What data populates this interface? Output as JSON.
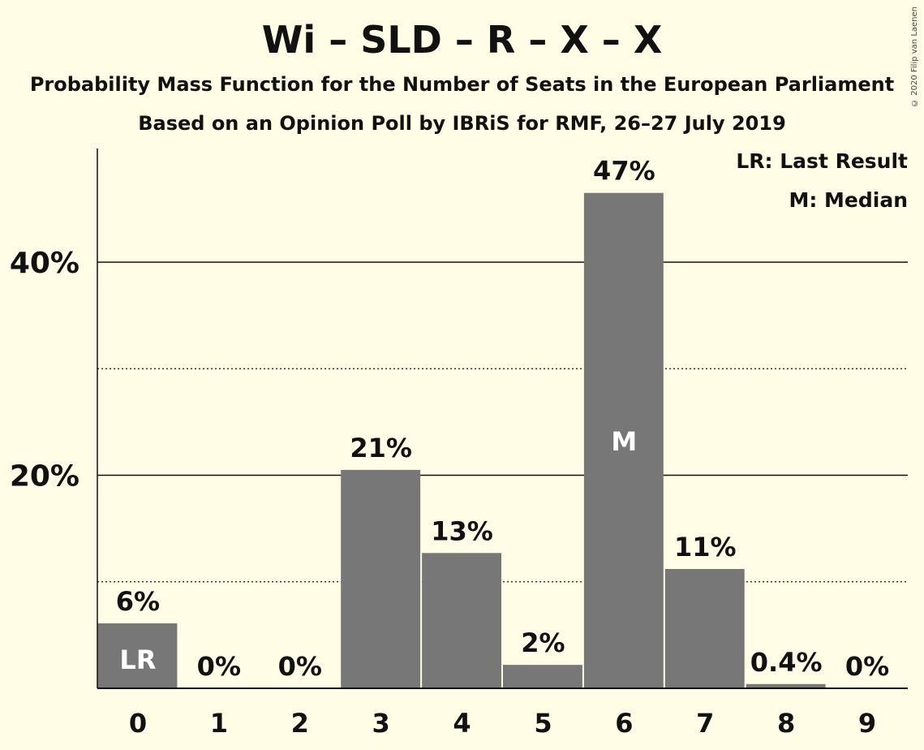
{
  "title": "Wi – SLD – R – X – X",
  "subtitle1": "Probability Mass Function for the Number of Seats in the European Parliament",
  "subtitle2": "Based on an Opinion Poll by IBRiS for RMF, 26–27 July 2019",
  "copyright": "© 2020 Filip van Laenen",
  "legend": {
    "lr": "LR: Last Result",
    "m": "M: Median"
  },
  "colors": {
    "background": "#fffde5",
    "bar": "#777777"
  },
  "chart_data": {
    "type": "bar",
    "categories": [
      "0",
      "1",
      "2",
      "3",
      "4",
      "5",
      "6",
      "7",
      "8",
      "9"
    ],
    "values": [
      6.1,
      0,
      0,
      20.5,
      12.7,
      2.2,
      46.5,
      11.2,
      0.4,
      0
    ],
    "data_labels": [
      "6%",
      "0%",
      "0%",
      "21%",
      "13%",
      "2%",
      "47%",
      "11%",
      "0.4%",
      "0%"
    ],
    "bar_markers": {
      "0": "LR",
      "6": "M"
    },
    "ylim": [
      0,
      50
    ],
    "yticks": [
      {
        "value": 20,
        "label": "20%"
      },
      {
        "value": 40,
        "label": "40%"
      }
    ],
    "minor_gridlines": [
      10,
      30
    ],
    "xlabel": "",
    "ylabel": ""
  }
}
